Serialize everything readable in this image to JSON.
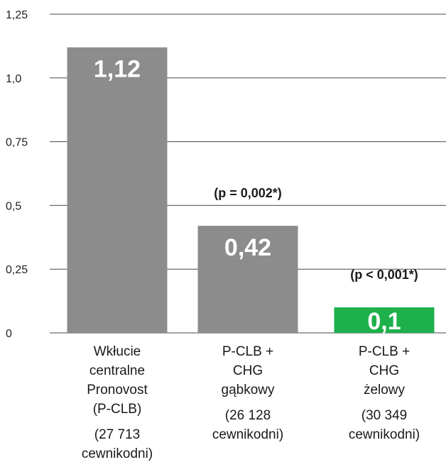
{
  "chart_data": {
    "type": "bar",
    "ylim": [
      0,
      1.25
    ],
    "yticks": [
      {
        "value": 0,
        "label": "0"
      },
      {
        "value": 0.25,
        "label": "0,25"
      },
      {
        "value": 0.5,
        "label": "0,5"
      },
      {
        "value": 0.75,
        "label": "0,75"
      },
      {
        "value": 1.0,
        "label": "1,0"
      },
      {
        "value": 1.25,
        "label": "1,25"
      }
    ],
    "grid": true,
    "bars": [
      {
        "value": 1.12,
        "value_label": "1,12",
        "color": "#8c8c8c",
        "annotation": "",
        "category_lines": [
          "Wkłucie",
          "centralne",
          "Pronovost",
          "(P-CLB)"
        ],
        "sub_lines": [
          "(27 713",
          "cewnikodni)"
        ]
      },
      {
        "value": 0.42,
        "value_label": "0,42",
        "color": "#8c8c8c",
        "annotation": "(p = 0,002*)",
        "category_lines": [
          "P-CLB +",
          "CHG",
          "gąbkowy"
        ],
        "sub_lines": [
          "(26 128",
          "cewnikodni)"
        ]
      },
      {
        "value": 0.1,
        "value_label": "0,1",
        "color": "#1db04b",
        "annotation": "(p < 0,001*)",
        "category_lines": [
          "P-CLB +",
          "CHG",
          "żelowy"
        ],
        "sub_lines": [
          "(30 349",
          "cewnikodni)"
        ]
      }
    ]
  }
}
